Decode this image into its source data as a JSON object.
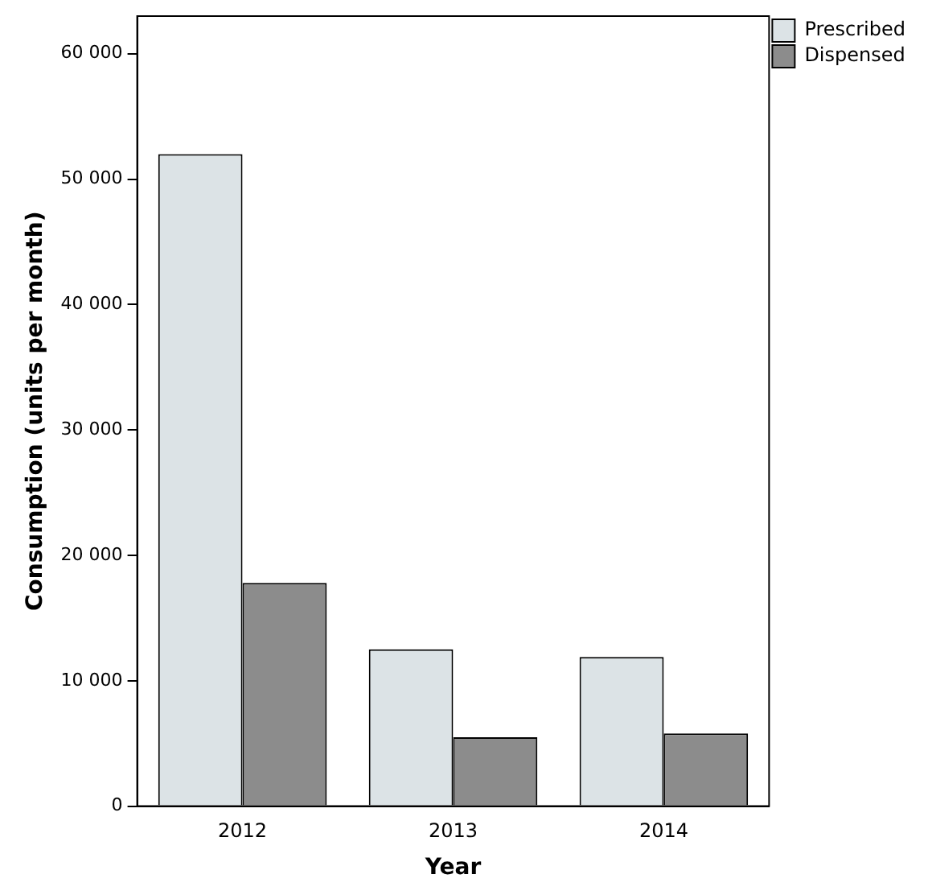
{
  "chart_data": {
    "type": "bar",
    "xlabel": "Year",
    "ylabel": "Consumption (units per month)",
    "categories": [
      "2012",
      "2013",
      "2014"
    ],
    "series": [
      {
        "name": "Prescribed",
        "color": "#dce3e6",
        "values": [
          52000,
          12500,
          11900
        ]
      },
      {
        "name": "Dispensed",
        "color": "#8c8c8c",
        "values": [
          17800,
          5500,
          5800
        ]
      }
    ],
    "ylim": [
      0,
      63000
    ],
    "yticks": [
      0,
      {
        "value": 10000,
        "label": "10 000"
      },
      {
        "value": 20000,
        "label": "20 000"
      },
      {
        "value": 30000,
        "label": "30 000"
      },
      {
        "value": 40000,
        "label": "40 000"
      },
      {
        "value": 50000,
        "label": "50 000"
      },
      {
        "value": 60000,
        "label": "60 000"
      }
    ],
    "grid": false,
    "legend": "top right"
  }
}
